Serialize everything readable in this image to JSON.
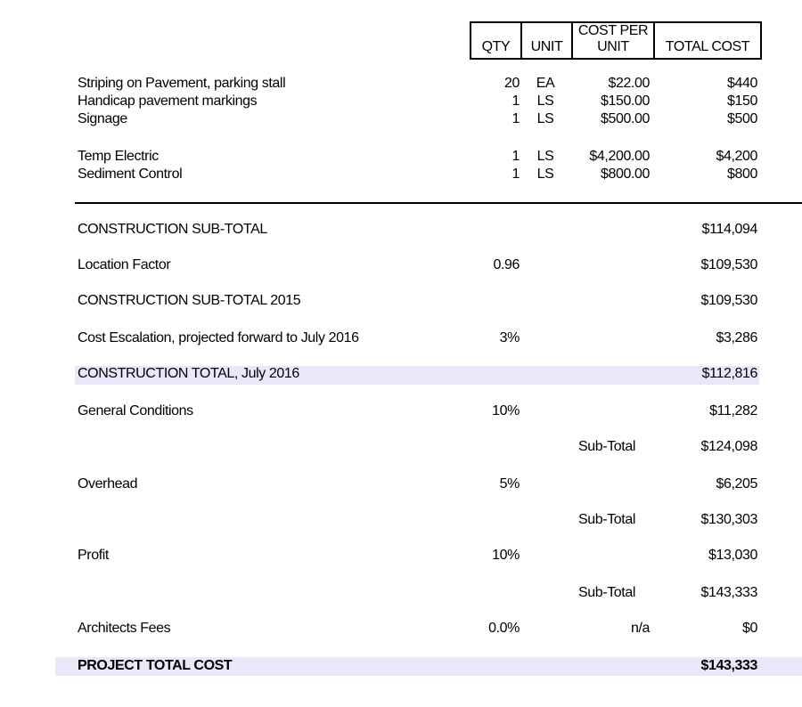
{
  "header": {
    "qty": "QTY",
    "unit": "UNIT",
    "cost_per_unit_1": "COST PER",
    "cost_per_unit_2": "UNIT",
    "total_cost": "TOTAL COST"
  },
  "items": [
    {
      "label": "Striping on Pavement, parking stall",
      "qty": "20",
      "unit": "EA",
      "cost": "$22.00",
      "total": "$440"
    },
    {
      "label": "Handicap pavement markings",
      "qty": "1",
      "unit": "LS",
      "cost": "$150.00",
      "total": "$150"
    },
    {
      "label": "Signage",
      "qty": "1",
      "unit": "LS",
      "cost": "$500.00",
      "total": "$500"
    },
    {
      "label": "Temp Electric",
      "qty": "1",
      "unit": "LS",
      "cost": "$4,200.00",
      "total": "$4,200"
    },
    {
      "label": "Sediment Control",
      "qty": "1",
      "unit": "LS",
      "cost": "$800.00",
      "total": "$800"
    }
  ],
  "summary": {
    "construction_subtotal": {
      "label": "CONSTRUCTION SUB-TOTAL",
      "total": "$114,094"
    },
    "location_factor": {
      "label": "Location Factor",
      "value": "0.96",
      "total": "$109,530"
    },
    "construction_subtotal_2015": {
      "label": "CONSTRUCTION SUB-TOTAL 2015",
      "total": "$109,530"
    },
    "escalation": {
      "label": "Cost Escalation, projected forward to July 2016",
      "value": "3%",
      "total": "$3,286"
    },
    "construction_total": {
      "label": "CONSTRUCTION TOTAL, July 2016",
      "total": "$112,816"
    },
    "general_conditions": {
      "label": "General Conditions",
      "value": "10%",
      "total": "$11,282"
    },
    "subtotal_1": {
      "label": "Sub-Total",
      "total": "$124,098"
    },
    "overhead": {
      "label": "Overhead",
      "value": "5%",
      "total": "$6,205"
    },
    "subtotal_2": {
      "label": "Sub-Total",
      "total": "$130,303"
    },
    "profit": {
      "label": "Profit",
      "value": "10%",
      "total": "$13,030"
    },
    "subtotal_3": {
      "label": "Sub-Total",
      "total": "$143,333"
    },
    "architects_fees": {
      "label": "Architects Fees",
      "value": "0.0%",
      "note": "n/a",
      "total": "$0"
    },
    "project_total": {
      "label": "PROJECT TOTAL COST",
      "total": "$143,333"
    }
  },
  "colors": {
    "highlight": "#e8e8f8"
  }
}
